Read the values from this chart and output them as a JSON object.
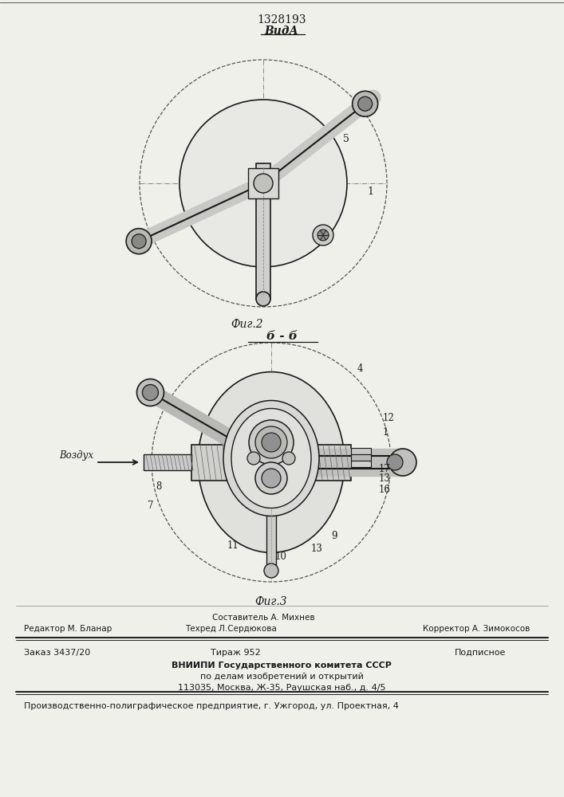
{
  "patent_number": "1328193",
  "view_label": "ВидА",
  "section_label": "б - б",
  "fig2_label": "Фиг.2",
  "fig3_label": "Фиг.3",
  "vozdukh_label": "Воздух",
  "footer": {
    "line1_center_top": "Составитель А. Михнев",
    "line1_left": "Редактор М. Бланар",
    "line1_center": "Техред Л.Сердюкова",
    "line1_right": "Корректор А. Зимокосов",
    "line2_left": "Заказ 3437/20",
    "line2_center": "Тираж 952",
    "line2_right": "Подписное",
    "line3": "ВНИИПИ Государственного комитета СССР",
    "line4": "по делам изобретений и открытий",
    "line5": "113035, Москва, Ж-35, Раушская наб., д. 4/5",
    "line6": "Производственно-полиграфическое предприятие, г. Ужгород, ул. Проектная, 4"
  },
  "bg_color": "#f0f0eb",
  "drawing_color": "#1a1a1a"
}
